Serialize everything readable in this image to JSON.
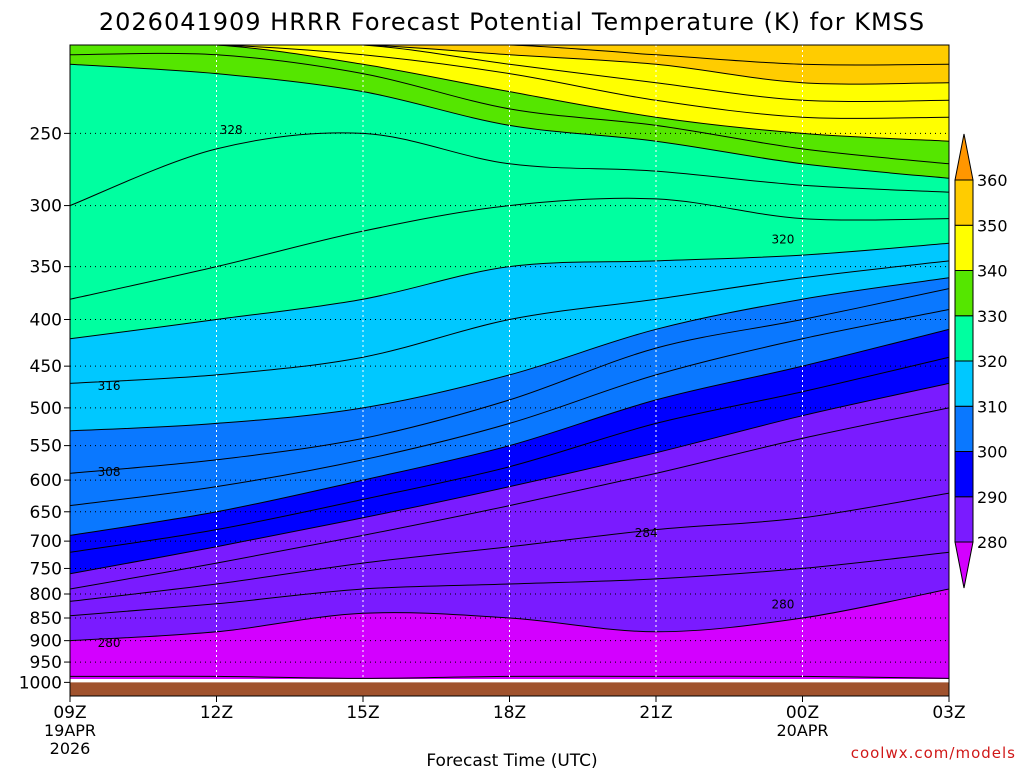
{
  "title": "2026041909 HRRR Forecast Potential Temperature (K) for KMSS",
  "credit": "coolwx.com/models",
  "chart_data": {
    "type": "heatmap",
    "title": "2026041909 HRRR Forecast Potential Temperature (K) for KMSS",
    "xlabel": "Forecast Time (UTC)",
    "ylabel": "",
    "y_scale": "log",
    "y_inverted": true,
    "pressure_range_hPa": [
      200,
      1035
    ],
    "y_ticks": [
      250,
      300,
      350,
      400,
      450,
      500,
      550,
      600,
      650,
      700,
      750,
      800,
      850,
      900,
      950,
      1000
    ],
    "x_range_hours": [
      0,
      18
    ],
    "x_ticks": [
      {
        "hour": 0,
        "label": "09Z",
        "sub1": "19APR",
        "sub2": "2026"
      },
      {
        "hour": 3,
        "label": "12Z",
        "sub1": "",
        "sub2": ""
      },
      {
        "hour": 6,
        "label": "15Z",
        "sub1": "",
        "sub2": ""
      },
      {
        "hour": 9,
        "label": "18Z",
        "sub1": "",
        "sub2": ""
      },
      {
        "hour": 12,
        "label": "21Z",
        "sub1": "",
        "sub2": ""
      },
      {
        "hour": 15,
        "label": "00Z",
        "sub1": "20APR",
        "sub2": ""
      },
      {
        "hour": 18,
        "label": "03Z",
        "sub1": "",
        "sub2": ""
      }
    ],
    "grid": true,
    "surface_pressure_hPa": 1000,
    "surface_color": "#a0522d",
    "colorbar": {
      "levels": [
        280,
        290,
        300,
        310,
        320,
        330,
        340,
        350,
        360
      ],
      "labels": [
        "280",
        "290",
        "300",
        "310",
        "320",
        "330",
        "340",
        "350",
        "360"
      ],
      "colors": [
        "#d300ff",
        "#7a1bff",
        "#0000ff",
        "#0a78ff",
        "#00c8ff",
        "#00ffa0",
        "#55e600",
        "#ffff00",
        "#ffcc00",
        "#ff9600"
      ],
      "extend": "both"
    },
    "isentropes": [
      {
        "theta": 278,
        "pressure": [
          985,
          985,
          990,
          985,
          985,
          985,
          990
        ]
      },
      {
        "theta": 280,
        "pressure": [
          900,
          880,
          840,
          850,
          880,
          850,
          790
        ]
      },
      {
        "theta": 282,
        "pressure": [
          845,
          820,
          790,
          780,
          770,
          750,
          720
        ]
      },
      {
        "theta": 284,
        "pressure": [
          815,
          780,
          740,
          710,
          680,
          660,
          620
        ]
      },
      {
        "theta": 288,
        "pressure": [
          790,
          740,
          690,
          640,
          590,
          540,
          500
        ]
      },
      {
        "theta": 292,
        "pressure": [
          760,
          710,
          660,
          610,
          560,
          510,
          470
        ]
      },
      {
        "theta": 296,
        "pressure": [
          720,
          680,
          630,
          580,
          520,
          480,
          440
        ]
      },
      {
        "theta": 300,
        "pressure": [
          690,
          650,
          600,
          550,
          490,
          450,
          410
        ]
      },
      {
        "theta": 304,
        "pressure": [
          640,
          610,
          570,
          520,
          460,
          420,
          390
        ]
      },
      {
        "theta": 308,
        "pressure": [
          590,
          570,
          540,
          490,
          430,
          400,
          370
        ]
      },
      {
        "theta": 312,
        "pressure": [
          530,
          520,
          500,
          460,
          410,
          380,
          360
        ]
      },
      {
        "theta": 316,
        "pressure": [
          470,
          460,
          440,
          400,
          380,
          360,
          345
        ]
      },
      {
        "theta": 320,
        "pressure": [
          420,
          400,
          380,
          350,
          345,
          340,
          330
        ]
      },
      {
        "theta": 324,
        "pressure": [
          380,
          350,
          320,
          300,
          295,
          310,
          310
        ]
      },
      {
        "theta": 328,
        "pressure": [
          300,
          260,
          250,
          270,
          275,
          285,
          290
        ]
      },
      {
        "theta": 332,
        "pressure": [
          210,
          215,
          225,
          245,
          255,
          270,
          280
        ]
      },
      {
        "theta": 336,
        "pressure": [
          205,
          205,
          215,
          235,
          245,
          260,
          270
        ]
      },
      {
        "theta": 340,
        "pressure": [
          200,
          200,
          210,
          225,
          240,
          250,
          255
        ]
      },
      {
        "theta": 344,
        "pressure": [
          200,
          200,
          205,
          215,
          230,
          240,
          240
        ]
      },
      {
        "theta": 348,
        "pressure": [
          200,
          200,
          200,
          210,
          220,
          230,
          230
        ]
      },
      {
        "theta": 352,
        "pressure": [
          200,
          200,
          200,
          205,
          210,
          220,
          220
        ]
      },
      {
        "theta": 356,
        "pressure": [
          200,
          200,
          200,
          200,
          205,
          210,
          210
        ]
      }
    ],
    "contour_labels": [
      {
        "text": "328",
        "hour": 3.3,
        "pressure": 248
      },
      {
        "text": "320",
        "hour": 14.6,
        "pressure": 327
      },
      {
        "text": "316",
        "hour": 0.8,
        "pressure": 473
      },
      {
        "text": "308",
        "hour": 0.8,
        "pressure": 588
      },
      {
        "text": "284",
        "hour": 11.8,
        "pressure": 686
      },
      {
        "text": "280",
        "hour": 14.6,
        "pressure": 822
      },
      {
        "text": "280",
        "hour": 0.8,
        "pressure": 905
      }
    ]
  }
}
